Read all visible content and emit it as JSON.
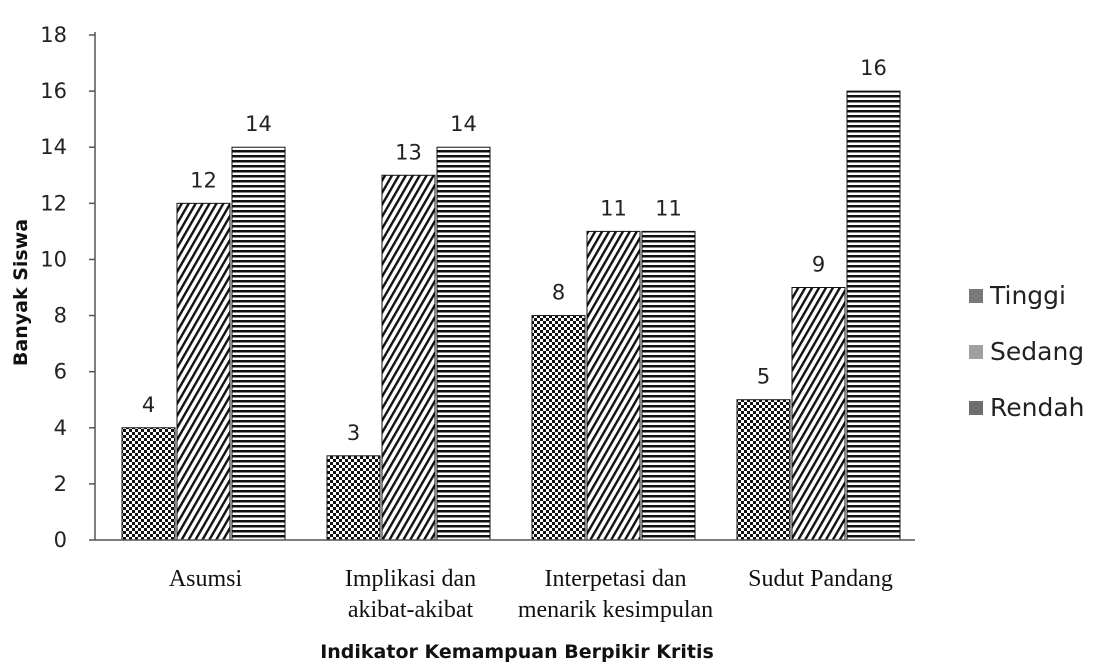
{
  "chart_data": {
    "type": "bar",
    "title": "",
    "xlabel": "Indikator Kemampuan Berpikir Kritis",
    "ylabel": "Banyak Siswa",
    "ylim": [
      0,
      18
    ],
    "yticks": [
      0,
      2,
      4,
      6,
      8,
      10,
      12,
      14,
      16,
      18
    ],
    "grid": false,
    "legend_position": "right",
    "categories": [
      [
        "Asumsi"
      ],
      [
        "Implikasi dan",
        "akibat-akibat"
      ],
      [
        "Interpetasi dan",
        "menarik kesimpulan"
      ],
      [
        "Sudut Pandang"
      ]
    ],
    "series": [
      {
        "name": "Tinggi",
        "pattern": "checker",
        "values": [
          4,
          3,
          8,
          5
        ]
      },
      {
        "name": "Sedang",
        "pattern": "diagonal",
        "values": [
          12,
          13,
          11,
          9
        ]
      },
      {
        "name": "Rendah",
        "pattern": "horizontal",
        "values": [
          14,
          14,
          11,
          16
        ]
      }
    ],
    "colors": {
      "ink": "#111111",
      "legend_tinggi": "#7a7a7a",
      "legend_sedang": "#a0a0a0",
      "legend_rendah": "#6e6e6e"
    }
  }
}
